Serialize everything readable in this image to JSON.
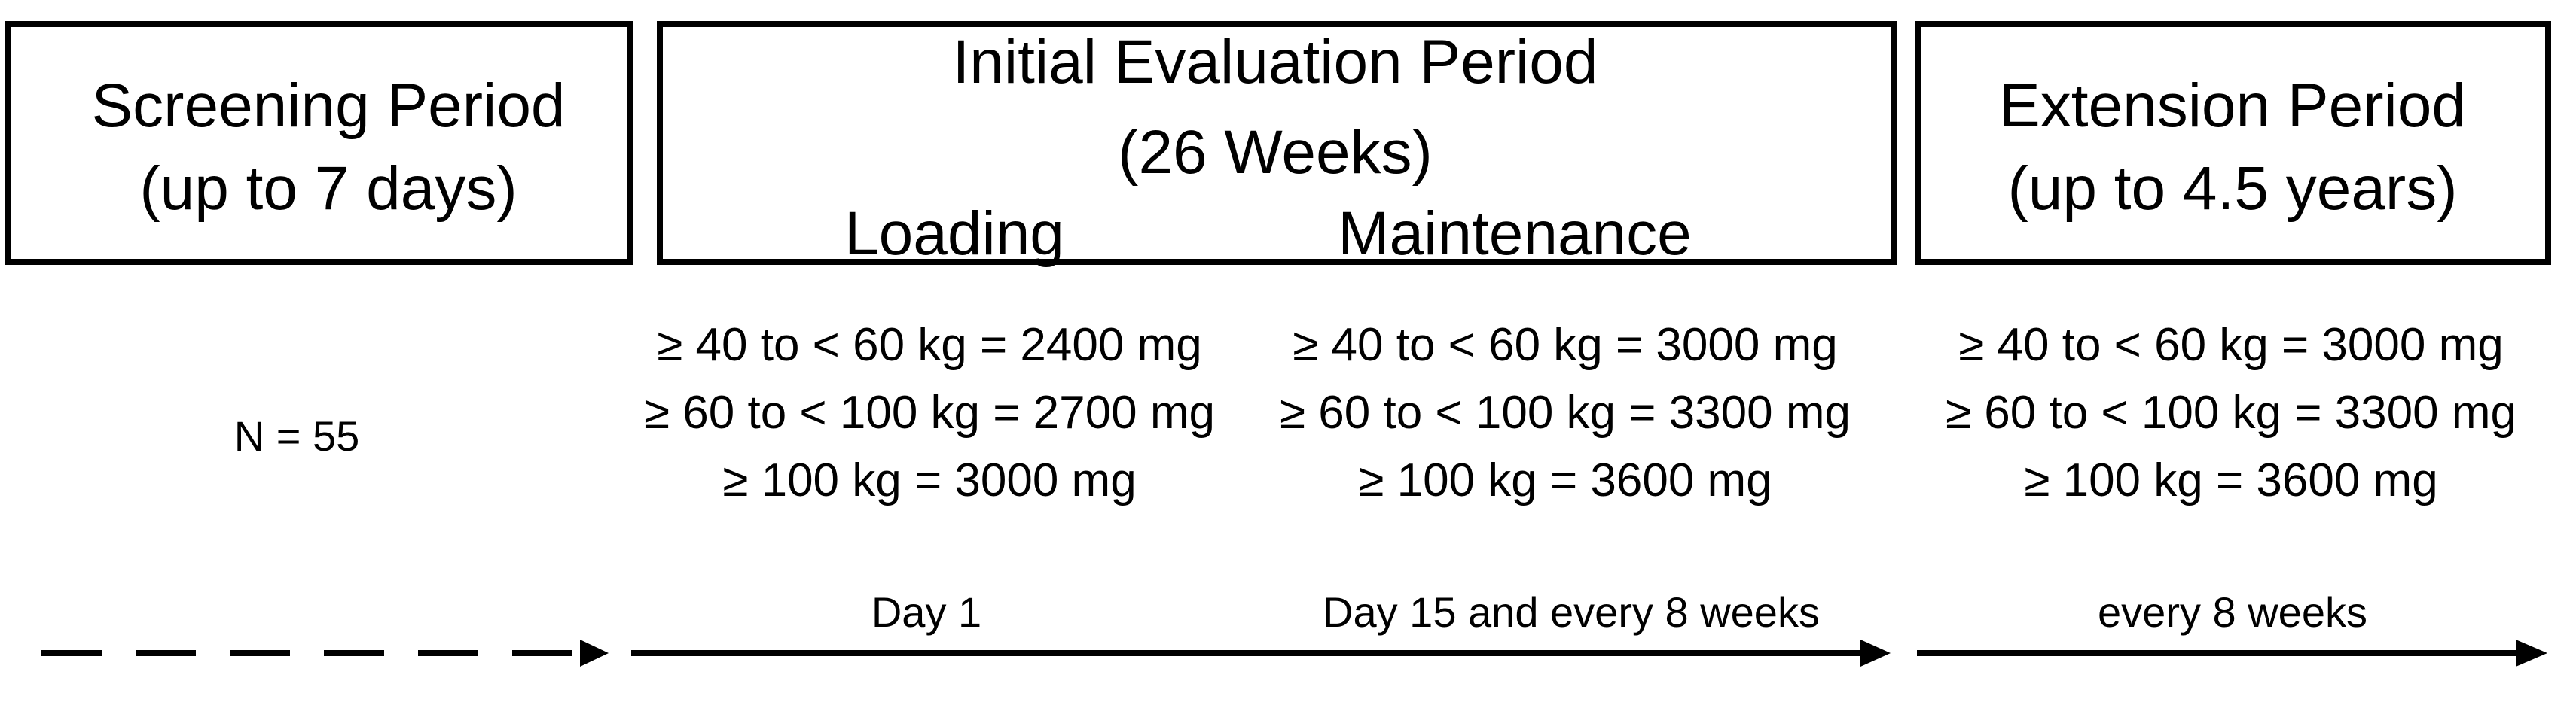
{
  "screening": {
    "title": "Screening Period",
    "duration": "(up to 7 days)",
    "n": "N = 55"
  },
  "initial": {
    "title": "Initial Evaluation Period",
    "duration": "(26 Weeks)",
    "loading_label": "Loading",
    "maintenance_label": "Maintenance",
    "loading_doses": [
      "≥ 40 to < 60 kg = 2400 mg",
      "≥ 60  to < 100 kg = 2700 mg",
      "≥ 100 kg = 3000 mg"
    ],
    "maintenance_doses": [
      "≥ 40 to < 60 kg = 3000 mg",
      "≥ 60 to < 100 kg = 3300 mg",
      "≥ 100 kg = 3600 mg"
    ],
    "loading_timing": "Day 1",
    "maintenance_timing": "Day 15 and every 8 weeks"
  },
  "extension": {
    "title": "Extension Period",
    "duration": "(up to 4.5 years)",
    "doses": [
      "≥ 40 to < 60 kg = 3000 mg",
      "≥ 60 to < 100 kg = 3300 mg",
      "≥ 100 kg = 3600 mg"
    ],
    "timing": "every 8 weeks"
  }
}
